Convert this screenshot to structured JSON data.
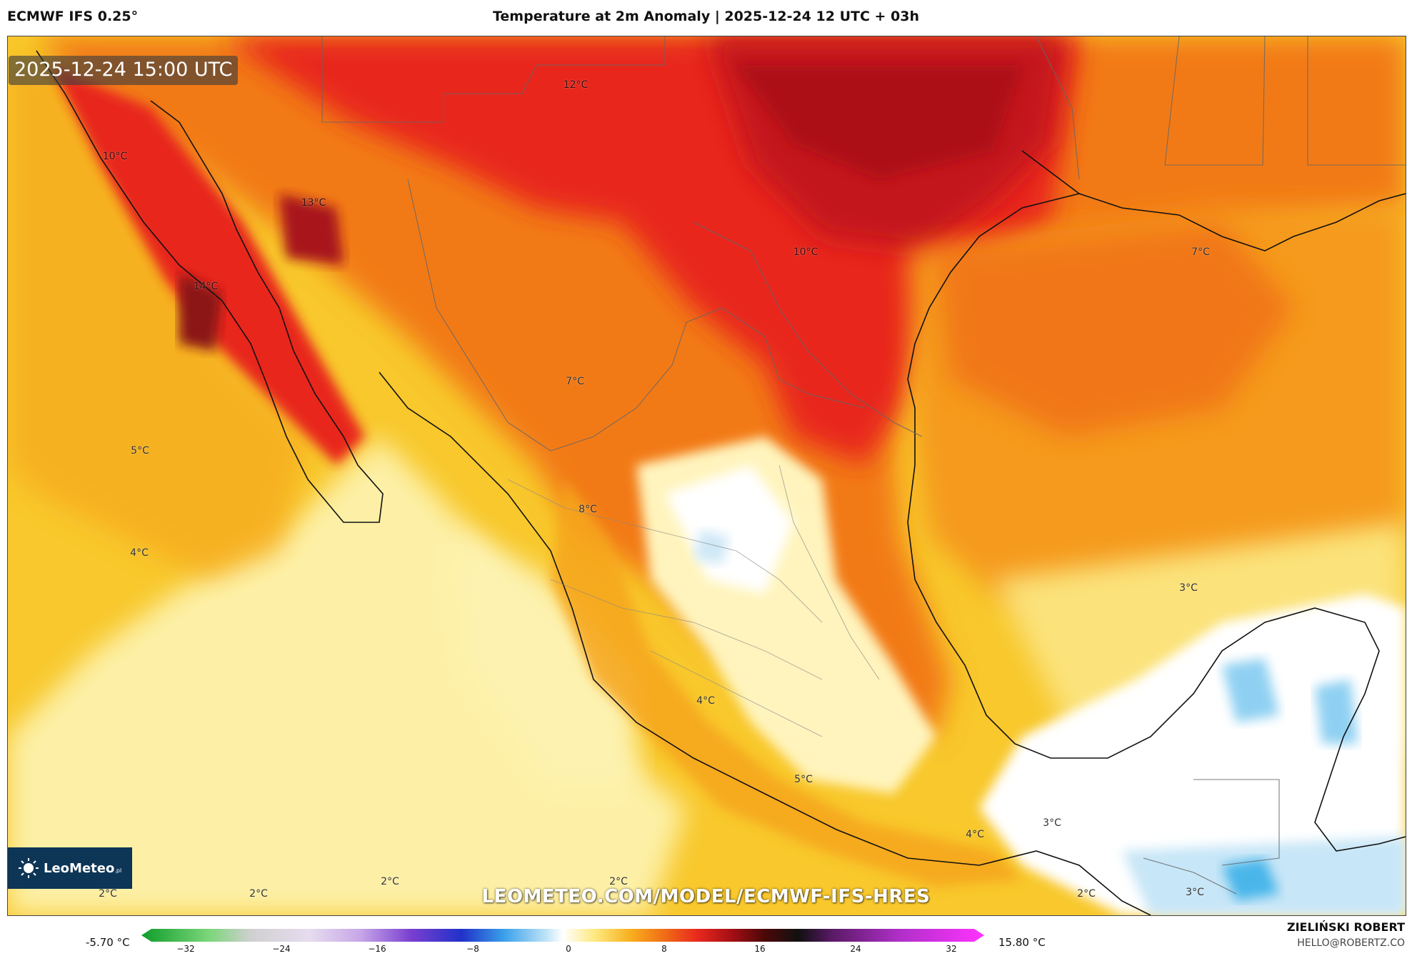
{
  "header": {
    "model": "ECMWF IFS 0.25°",
    "title": "Temperature at 2m Anomaly | 2025-12-24 12 UTC + 03h"
  },
  "map": {
    "valid_time": "2025-12-24 15:00 UTC",
    "watermark": "LEOMETEO.COM/MODEL/ECMWF-IFS-HRES",
    "logo_text": "LeoMeteo",
    "logo_suffix": ".pl",
    "labels": [
      {
        "text": "12°C"
      },
      {
        "text": "10°C"
      },
      {
        "text": "13°C"
      },
      {
        "text": "14°C"
      },
      {
        "text": "10°C"
      },
      {
        "text": "7°C"
      },
      {
        "text": "7°C"
      },
      {
        "text": "5°C"
      },
      {
        "text": "8°C"
      },
      {
        "text": "4°C"
      },
      {
        "text": "3°C"
      },
      {
        "text": "4°C"
      },
      {
        "text": "5°C"
      },
      {
        "text": "3°C"
      },
      {
        "text": "4°C"
      },
      {
        "text": "2°C"
      },
      {
        "text": "2°C"
      },
      {
        "text": "2°C"
      },
      {
        "text": "2°C"
      },
      {
        "text": "2°C"
      },
      {
        "text": "3°C"
      }
    ]
  },
  "colorbar": {
    "min_label": "-5.70 °C",
    "max_label": "15.80 °C",
    "ticks": [
      "−32",
      "−24",
      "−16",
      "−8",
      "0",
      "8",
      "16",
      "24",
      "32"
    ]
  },
  "footer": {
    "author": "ZIELIŃSKI ROBERT",
    "email": "HELLO@ROBERTZ.CO"
  }
}
